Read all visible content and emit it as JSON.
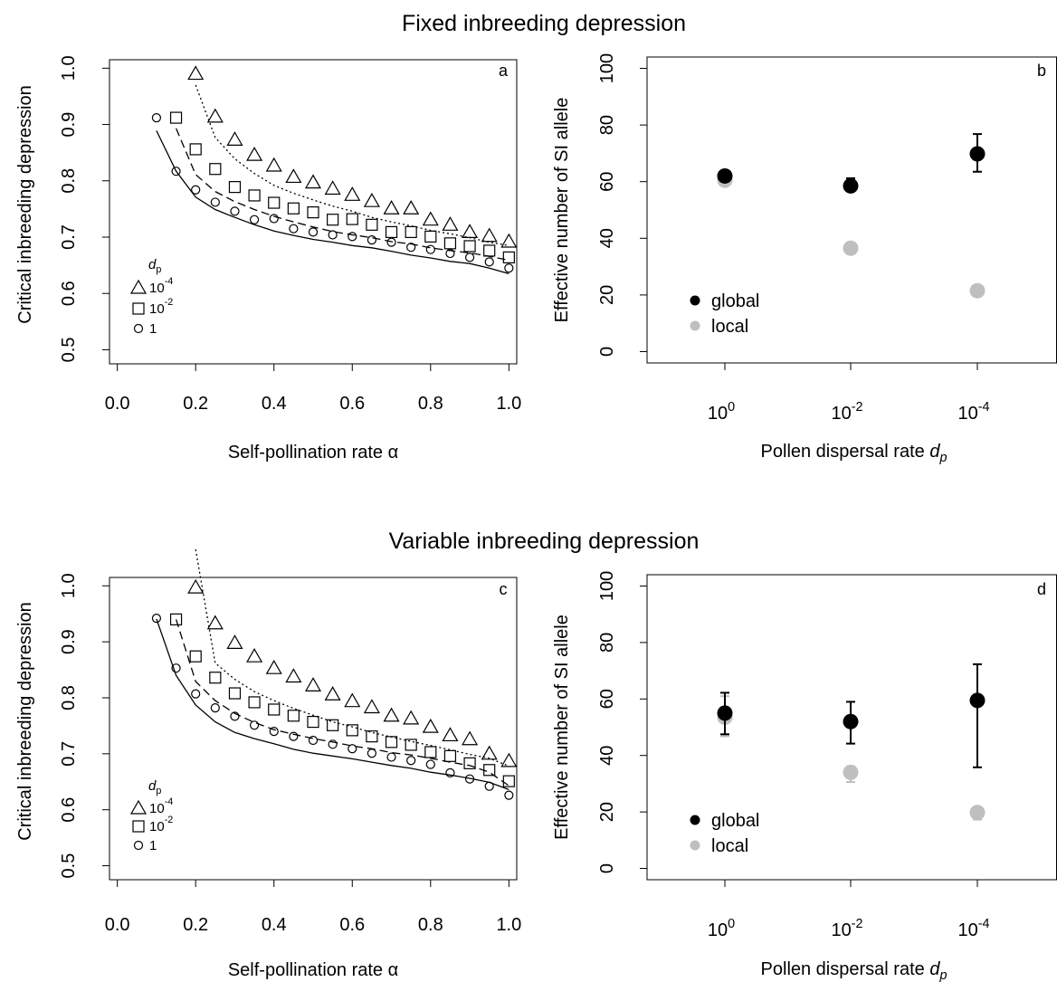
{
  "figure": {
    "row_titles": [
      "Fixed inbreeding depression",
      "Variable inbreeding depression"
    ]
  },
  "chart_data": [
    {
      "panel": "a",
      "type": "scatter",
      "xlabel": "Self-pollination rate α",
      "ylabel": "Critical inbreeding depression",
      "xlim": [
        0.0,
        1.0
      ],
      "ylim": [
        0.5,
        1.0
      ],
      "xticks": [
        "0.0",
        "0.2",
        "0.4",
        "0.6",
        "0.8",
        "1.0"
      ],
      "yticks": [
        "0.5",
        "0.6",
        "0.7",
        "0.8",
        "0.9",
        "1.0"
      ],
      "grid": false,
      "legend": {
        "title": "dp",
        "title_base": "d",
        "title_sub": "p",
        "labels": [
          "10-4",
          "10-2",
          "1"
        ],
        "label_parts": [
          [
            "10",
            "-4"
          ],
          [
            "10",
            "-2"
          ],
          [
            "1",
            ""
          ]
        ]
      },
      "series": [
        {
          "name": "10-4",
          "marker": "triangle",
          "line": "dotted",
          "x": [
            0.2,
            0.25,
            0.3,
            0.35,
            0.4,
            0.45,
            0.5,
            0.55,
            0.6,
            0.65,
            0.7,
            0.75,
            0.8,
            0.85,
            0.9,
            0.95,
            1.0
          ],
          "points": [
            0.99,
            0.914,
            0.873,
            0.846,
            0.827,
            0.807,
            0.797,
            0.786,
            0.775,
            0.764,
            0.751,
            0.751,
            0.731,
            0.722,
            0.709,
            0.702,
            0.692
          ],
          "curve": [
            0.97,
            0.877,
            0.839,
            0.813,
            0.792,
            0.778,
            0.766,
            0.755,
            0.746,
            0.735,
            0.727,
            0.72,
            0.712,
            0.706,
            0.699,
            0.691,
            0.685
          ]
        },
        {
          "name": "10-2",
          "marker": "square",
          "line": "dashed",
          "x": [
            0.15,
            0.2,
            0.25,
            0.3,
            0.35,
            0.4,
            0.45,
            0.5,
            0.55,
            0.6,
            0.65,
            0.7,
            0.75,
            0.8,
            0.85,
            0.9,
            0.95,
            1.0
          ],
          "points": [
            0.912,
            0.856,
            0.821,
            0.789,
            0.774,
            0.761,
            0.751,
            0.744,
            0.731,
            0.732,
            0.722,
            0.709,
            0.709,
            0.701,
            0.689,
            0.684,
            0.676,
            0.664
          ],
          "curve": [
            0.893,
            0.811,
            0.781,
            0.763,
            0.749,
            0.737,
            0.727,
            0.718,
            0.71,
            0.704,
            0.699,
            0.692,
            0.688,
            0.681,
            0.676,
            0.672,
            0.666,
            0.659
          ]
        },
        {
          "name": "1",
          "marker": "circle",
          "line": "solid",
          "x": [
            0.1,
            0.15,
            0.2,
            0.25,
            0.3,
            0.35,
            0.4,
            0.45,
            0.5,
            0.55,
            0.6,
            0.65,
            0.7,
            0.75,
            0.8,
            0.85,
            0.9,
            0.95,
            1.0
          ],
          "points": [
            0.912,
            0.817,
            0.784,
            0.762,
            0.746,
            0.731,
            0.733,
            0.715,
            0.709,
            0.704,
            0.701,
            0.695,
            0.691,
            0.682,
            0.678,
            0.671,
            0.664,
            0.656,
            0.645
          ],
          "curve": [
            0.889,
            0.817,
            0.771,
            0.749,
            0.735,
            0.722,
            0.711,
            0.703,
            0.696,
            0.691,
            0.685,
            0.681,
            0.675,
            0.668,
            0.663,
            0.657,
            0.653,
            0.645,
            0.635
          ]
        }
      ]
    },
    {
      "panel": "b",
      "type": "scatter",
      "xlabel": "Pollen dispersal rate dp",
      "xlabel_parts": {
        "text": "Pollen dispersal rate ",
        "var": "d",
        "sub": "p"
      },
      "ylabel": "Effective number of SI allele",
      "ylim": [
        0,
        100
      ],
      "yticks": [
        "0",
        "20",
        "40",
        "60",
        "80",
        "100"
      ],
      "categories": [
        "10^0",
        "10^-2",
        "10^-4"
      ],
      "category_parts": [
        [
          "10",
          "0"
        ],
        [
          "10",
          "-2"
        ],
        [
          "10",
          "-4"
        ]
      ],
      "grid": false,
      "legend_position": "bottom-left",
      "series": [
        {
          "name": "global",
          "color": "#000000",
          "values": [
            62,
            58.5,
            69.8
          ],
          "err_low": [
            61,
            56.7,
            63.5
          ],
          "err_high": [
            63.5,
            61.2,
            76.8
          ]
        },
        {
          "name": "local",
          "color": "#bfbfbf",
          "values": [
            60.5,
            36.5,
            21.5
          ],
          "err_low": [
            59,
            35.8,
            20.8
          ],
          "err_high": [
            61.2,
            37.1,
            22.3
          ]
        }
      ]
    },
    {
      "panel": "c",
      "type": "scatter",
      "xlabel": "Self-pollination rate α",
      "ylabel": "Critical inbreeding depression",
      "xlim": [
        0.0,
        1.0
      ],
      "ylim": [
        0.5,
        1.0
      ],
      "xticks": [
        "0.0",
        "0.2",
        "0.4",
        "0.6",
        "0.8",
        "1.0"
      ],
      "yticks": [
        "0.5",
        "0.6",
        "0.7",
        "0.8",
        "0.9",
        "1.0"
      ],
      "grid": false,
      "legend": {
        "title": "dp",
        "title_base": "d",
        "title_sub": "p",
        "labels": [
          "10-4",
          "10-2",
          "1"
        ],
        "label_parts": [
          [
            "10",
            "-4"
          ],
          [
            "10",
            "-2"
          ],
          [
            "1",
            ""
          ]
        ]
      },
      "series": [
        {
          "name": "10-4",
          "marker": "triangle",
          "line": "dotted",
          "x": [
            0.2,
            0.25,
            0.3,
            0.35,
            0.4,
            0.45,
            0.5,
            0.55,
            0.6,
            0.65,
            0.7,
            0.75,
            0.8,
            0.85,
            0.9,
            0.95,
            1.0
          ],
          "points": [
            0.997,
            0.933,
            0.898,
            0.874,
            0.853,
            0.838,
            0.822,
            0.806,
            0.794,
            0.783,
            0.768,
            0.763,
            0.748,
            0.733,
            0.726,
            0.7,
            0.687
          ],
          "curve": [
            1.065,
            0.862,
            0.833,
            0.811,
            0.795,
            0.781,
            0.769,
            0.757,
            0.748,
            0.738,
            0.73,
            0.722,
            0.715,
            0.707,
            0.699,
            0.692,
            0.678
          ]
        },
        {
          "name": "10-2",
          "marker": "square",
          "line": "dashed",
          "x": [
            0.15,
            0.2,
            0.25,
            0.3,
            0.35,
            0.4,
            0.45,
            0.5,
            0.55,
            0.6,
            0.65,
            0.7,
            0.75,
            0.8,
            0.85,
            0.9,
            0.95,
            1.0
          ],
          "points": [
            0.94,
            0.874,
            0.836,
            0.808,
            0.792,
            0.779,
            0.768,
            0.757,
            0.751,
            0.742,
            0.731,
            0.721,
            0.716,
            0.703,
            0.696,
            0.683,
            0.671,
            0.651
          ],
          "curve": [
            0.94,
            0.829,
            0.795,
            0.772,
            0.756,
            0.743,
            0.735,
            0.727,
            0.721,
            0.714,
            0.709,
            0.702,
            0.698,
            0.692,
            0.685,
            0.679,
            0.667,
            0.643
          ]
        },
        {
          "name": "1",
          "marker": "circle",
          "line": "solid",
          "x": [
            0.1,
            0.15,
            0.2,
            0.25,
            0.3,
            0.35,
            0.4,
            0.45,
            0.5,
            0.55,
            0.6,
            0.65,
            0.7,
            0.75,
            0.8,
            0.85,
            0.9,
            0.95,
            1.0
          ],
          "points": [
            0.942,
            0.853,
            0.807,
            0.782,
            0.767,
            0.751,
            0.74,
            0.731,
            0.724,
            0.717,
            0.709,
            0.701,
            0.694,
            0.688,
            0.681,
            0.666,
            0.655,
            0.642,
            0.626
          ],
          "curve": [
            0.941,
            0.84,
            0.787,
            0.757,
            0.738,
            0.727,
            0.718,
            0.708,
            0.701,
            0.696,
            0.691,
            0.685,
            0.679,
            0.674,
            0.667,
            0.662,
            0.656,
            0.649,
            0.636
          ]
        }
      ]
    },
    {
      "panel": "d",
      "type": "scatter",
      "xlabel": "Pollen dispersal rate dp",
      "xlabel_parts": {
        "text": "Pollen dispersal rate ",
        "var": "d",
        "sub": "p"
      },
      "ylabel": "Effective number of SI allele",
      "ylim": [
        0,
        100
      ],
      "yticks": [
        "0",
        "20",
        "40",
        "60",
        "80",
        "100"
      ],
      "categories": [
        "10^0",
        "10^-2",
        "10^-4"
      ],
      "category_parts": [
        [
          "10",
          "0"
        ],
        [
          "10",
          "-2"
        ],
        [
          "10",
          "-4"
        ]
      ],
      "grid": false,
      "legend_position": "bottom-left",
      "series": [
        {
          "name": "global",
          "color": "#000000",
          "values": [
            55,
            52,
            59.5
          ],
          "err_low": [
            47.5,
            44.2,
            35.8
          ],
          "err_high": [
            62.2,
            59,
            72.3
          ]
        },
        {
          "name": "local",
          "color": "#bfbfbf",
          "values": [
            53.5,
            34,
            19.8
          ],
          "err_low": [
            46.8,
            30.6,
            17.3
          ],
          "err_high": [
            61,
            36.2,
            21.6
          ]
        }
      ]
    }
  ]
}
